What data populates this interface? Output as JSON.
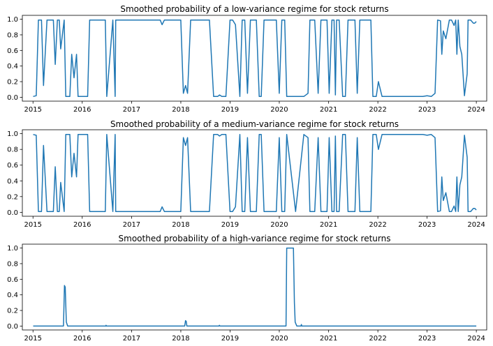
{
  "chart_data": [
    {
      "type": "line",
      "title": "Smoothed probability of a low-variance regime for stock returns",
      "xlabel": "",
      "ylabel": "",
      "xlim": [
        "2014-10-14",
        "2024-03-18"
      ],
      "ylim": [
        -0.05,
        1.05
      ],
      "x_ticks": [
        "2015",
        "2016",
        "2017",
        "2018",
        "2019",
        "2020",
        "2021",
        "2022",
        "2023",
        "2024"
      ],
      "y_ticks": [
        "0.0",
        "0.2",
        "0.4",
        "0.6",
        "0.8",
        "1.0"
      ],
      "grid": false,
      "color": "#1f77b4",
      "series": [
        {
          "x": [
            "2015-01-02",
            "2015-01-25",
            "2015-02-10",
            "2015-03-05",
            "2015-03-20",
            "2015-04-15",
            "2015-05-10",
            "2015-06-01",
            "2015-06-15",
            "2015-07-01",
            "2015-07-15",
            "2015-07-25",
            "2015-08-20",
            "2015-09-01",
            "2015-10-01",
            "2015-10-15",
            "2015-11-01",
            "2015-11-20",
            "2015-12-01",
            "2016-01-15",
            "2016-02-10",
            "2016-02-25",
            "2016-03-20",
            "2016-04-01",
            "2016-05-01",
            "2016-06-20",
            "2016-07-01",
            "2016-08-15",
            "2016-09-01",
            "2016-09-05",
            "2016-10-01",
            "2016-10-20",
            "2016-11-01",
            "2017-01-01",
            "2017-06-01",
            "2017-08-01",
            "2017-08-15",
            "2017-09-01",
            "2018-01-01",
            "2018-01-20",
            "2018-02-05",
            "2018-02-20",
            "2018-03-15",
            "2018-04-01",
            "2018-04-15",
            "2018-05-15",
            "2018-06-01",
            "2018-07-01",
            "2018-08-01",
            "2018-09-01",
            "2018-10-01",
            "2018-10-15",
            "2018-11-01",
            "2018-12-01",
            "2019-01-01",
            "2019-01-20",
            "2019-02-10",
            "2019-03-15",
            "2019-04-01",
            "2019-04-20",
            "2019-05-10",
            "2019-06-01",
            "2019-06-15",
            "2019-07-15",
            "2019-08-05",
            "2019-08-20",
            "2019-09-10",
            "2019-10-01",
            "2019-10-20",
            "2019-11-15",
            "2019-12-10",
            "2020-01-01",
            "2020-01-20",
            "2020-02-10",
            "2020-02-25",
            "2020-05-01",
            "2020-07-01",
            "2020-08-01",
            "2020-08-15",
            "2020-09-01",
            "2020-09-20",
            "2020-10-15",
            "2020-11-05",
            "2020-11-20",
            "2020-12-01",
            "2020-12-20",
            "2021-01-05",
            "2021-01-25",
            "2021-02-10",
            "2021-02-20",
            "2021-03-01",
            "2021-03-20",
            "2021-04-15",
            "2021-05-05",
            "2021-05-25",
            "2021-06-10",
            "2021-07-15",
            "2021-08-01",
            "2021-08-20",
            "2021-09-15",
            "2021-10-01",
            "2021-10-20",
            "2021-11-10",
            "2021-11-25",
            "2021-12-20",
            "2022-01-05",
            "2022-02-01",
            "2022-03-01",
            "2022-06-01",
            "2022-09-01",
            "2022-12-01",
            "2023-01-01",
            "2023-02-01",
            "2023-03-01",
            "2023-03-20",
            "2023-04-10",
            "2023-04-20",
            "2023-05-01",
            "2023-05-20",
            "2023-06-15",
            "2023-07-01",
            "2023-07-20",
            "2023-08-01",
            "2023-08-10",
            "2023-08-20",
            "2023-09-01",
            "2023-09-15",
            "2023-10-05",
            "2023-10-25",
            "2023-11-01",
            "2023-11-20",
            "2023-12-10",
            "2023-12-20",
            "2024-01-01"
          ],
          "values": [
            0.01,
            0.02,
            0.99,
            0.99,
            0.15,
            0.99,
            0.99,
            0.99,
            0.42,
            0.99,
            0.99,
            0.62,
            0.99,
            0.01,
            0.01,
            0.55,
            0.25,
            0.55,
            0.01,
            0.01,
            0.01,
            0.99,
            0.99,
            0.99,
            0.99,
            0.99,
            0.01,
            0.99,
            0.01,
            0.99,
            0.99,
            0.99,
            0.99,
            0.99,
            0.99,
            0.99,
            0.93,
            0.99,
            0.99,
            0.05,
            0.15,
            0.05,
            0.99,
            0.99,
            0.99,
            0.99,
            0.99,
            0.99,
            0.99,
            0.01,
            0.01,
            0.03,
            0.01,
            0.01,
            0.99,
            0.99,
            0.93,
            0.01,
            0.99,
            0.99,
            0.05,
            0.99,
            0.99,
            0.99,
            0.01,
            0.01,
            0.99,
            0.99,
            0.99,
            0.99,
            0.99,
            0.05,
            0.99,
            0.99,
            0.01,
            0.01,
            0.01,
            0.05,
            0.99,
            0.99,
            0.99,
            0.05,
            0.99,
            0.99,
            0.99,
            0.99,
            0.05,
            0.99,
            0.99,
            0.03,
            0.99,
            0.99,
            0.01,
            0.01,
            0.99,
            0.99,
            0.99,
            0.05,
            0.99,
            0.99,
            0.99,
            0.99,
            0.99,
            0.01,
            0.01,
            0.2,
            0.01,
            0.01,
            0.01,
            0.01,
            0.01,
            0.02,
            0.01,
            0.05,
            0.99,
            0.98,
            0.55,
            0.85,
            0.75,
            0.99,
            0.99,
            0.92,
            0.99,
            0.55,
            0.99,
            0.65,
            0.55,
            0.02,
            0.3,
            0.99,
            0.99,
            0.95,
            0.95,
            0.97
          ]
        }
      ]
    },
    {
      "type": "line",
      "title": "Smoothed probability of a medium-variance regime for stock returns",
      "xlabel": "",
      "ylabel": "",
      "xlim": [
        "2014-10-14",
        "2024-03-18"
      ],
      "ylim": [
        -0.05,
        1.05
      ],
      "x_ticks": [
        "2015",
        "2016",
        "2017",
        "2018",
        "2019",
        "2020",
        "2021",
        "2022",
        "2023",
        "2024"
      ],
      "y_ticks": [
        "0.0",
        "0.2",
        "0.4",
        "0.6",
        "0.8",
        "1.0"
      ],
      "grid": false,
      "color": "#1f77b4",
      "series": [
        {
          "x": [
            "2015-01-02",
            "2015-01-25",
            "2015-02-10",
            "2015-03-05",
            "2015-03-20",
            "2015-04-15",
            "2015-05-10",
            "2015-06-01",
            "2015-06-15",
            "2015-07-01",
            "2015-07-15",
            "2015-07-25",
            "2015-08-20",
            "2015-09-01",
            "2015-10-01",
            "2015-10-15",
            "2015-11-01",
            "2015-11-20",
            "2015-12-01",
            "2016-01-15",
            "2016-02-10",
            "2016-02-25",
            "2016-03-20",
            "2016-04-01",
            "2016-05-01",
            "2016-06-20",
            "2016-07-01",
            "2016-08-15",
            "2016-09-01",
            "2016-09-05",
            "2016-10-01",
            "2016-10-20",
            "2016-11-01",
            "2017-01-01",
            "2017-06-01",
            "2017-08-01",
            "2017-08-15",
            "2017-09-01",
            "2018-01-01",
            "2018-01-20",
            "2018-02-05",
            "2018-02-20",
            "2018-03-15",
            "2018-04-01",
            "2018-04-15",
            "2018-05-15",
            "2018-06-01",
            "2018-07-01",
            "2018-08-01",
            "2018-09-01",
            "2018-10-01",
            "2018-10-15",
            "2018-11-01",
            "2018-12-01",
            "2019-01-01",
            "2019-01-20",
            "2019-02-10",
            "2019-03-15",
            "2019-04-01",
            "2019-04-20",
            "2019-05-10",
            "2019-06-01",
            "2019-06-15",
            "2019-07-15",
            "2019-08-05",
            "2019-08-20",
            "2019-09-10",
            "2019-10-01",
            "2019-10-20",
            "2019-11-15",
            "2019-12-10",
            "2020-01-01",
            "2020-01-20",
            "2020-02-10",
            "2020-02-25",
            "2020-05-01",
            "2020-07-01",
            "2020-08-01",
            "2020-08-15",
            "2020-09-01",
            "2020-09-20",
            "2020-10-15",
            "2020-11-05",
            "2020-11-20",
            "2020-12-01",
            "2020-12-20",
            "2021-01-05",
            "2021-01-25",
            "2021-02-10",
            "2021-02-20",
            "2021-03-01",
            "2021-03-20",
            "2021-04-15",
            "2021-05-05",
            "2021-05-25",
            "2021-06-10",
            "2021-07-15",
            "2021-08-01",
            "2021-08-20",
            "2021-09-15",
            "2021-10-01",
            "2021-10-20",
            "2021-11-10",
            "2021-11-25",
            "2021-12-20",
            "2022-01-05",
            "2022-02-01",
            "2022-03-01",
            "2022-06-01",
            "2022-09-01",
            "2022-12-01",
            "2023-01-01",
            "2023-02-01",
            "2023-03-01",
            "2023-03-20",
            "2023-04-10",
            "2023-04-20",
            "2023-05-01",
            "2023-05-20",
            "2023-06-15",
            "2023-07-01",
            "2023-07-20",
            "2023-08-01",
            "2023-08-10",
            "2023-08-20",
            "2023-09-01",
            "2023-09-15",
            "2023-10-05",
            "2023-10-25",
            "2023-11-01",
            "2023-11-20",
            "2023-12-10",
            "2023-12-20",
            "2024-01-01"
          ],
          "values": [
            0.99,
            0.98,
            0.01,
            0.01,
            0.85,
            0.01,
            0.01,
            0.01,
            0.58,
            0.01,
            0.01,
            0.38,
            0.01,
            0.99,
            0.99,
            0.45,
            0.75,
            0.45,
            0.99,
            0.99,
            0.99,
            0.01,
            0.01,
            0.01,
            0.01,
            0.01,
            0.99,
            0.01,
            0.99,
            0.01,
            0.01,
            0.01,
            0.01,
            0.01,
            0.01,
            0.01,
            0.07,
            0.01,
            0.01,
            0.95,
            0.85,
            0.95,
            0.01,
            0.01,
            0.01,
            0.01,
            0.01,
            0.01,
            0.01,
            0.99,
            0.99,
            0.97,
            0.99,
            0.99,
            0.01,
            0.01,
            0.07,
            0.99,
            0.01,
            0.01,
            0.95,
            0.01,
            0.01,
            0.01,
            0.99,
            0.99,
            0.01,
            0.01,
            0.01,
            0.01,
            0.01,
            0.95,
            0.01,
            0.01,
            0.99,
            0.01,
            0.99,
            0.95,
            0.01,
            0.01,
            0.01,
            0.95,
            0.01,
            0.01,
            0.01,
            0.01,
            0.95,
            0.01,
            0.01,
            0.97,
            0.01,
            0.01,
            0.99,
            0.99,
            0.01,
            0.01,
            0.01,
            0.95,
            0.01,
            0.01,
            0.01,
            0.01,
            0.01,
            0.99,
            0.99,
            0.8,
            0.99,
            0.99,
            0.99,
            0.99,
            0.99,
            0.98,
            0.99,
            0.95,
            0.01,
            0.02,
            0.45,
            0.15,
            0.25,
            0.01,
            0.01,
            0.08,
            0.01,
            0.45,
            0.01,
            0.35,
            0.45,
            0.98,
            0.7,
            0.01,
            0.01,
            0.05,
            0.05,
            0.03
          ]
        }
      ]
    },
    {
      "type": "line",
      "title": "Smoothed probability of a high-variance regime for stock returns",
      "xlabel": "",
      "ylabel": "",
      "xlim": [
        "2014-10-14",
        "2024-03-18"
      ],
      "ylim": [
        -0.05,
        1.05
      ],
      "x_ticks": [
        "2015",
        "2016",
        "2017",
        "2018",
        "2019",
        "2020",
        "2021",
        "2022",
        "2023",
        "2024"
      ],
      "y_ticks": [
        "0.0",
        "0.2",
        "0.4",
        "0.6",
        "0.8",
        "1.0"
      ],
      "grid": false,
      "color": "#1f77b4",
      "series": [
        {
          "x": [
            "2015-01-02",
            "2015-08-15",
            "2015-08-22",
            "2015-08-28",
            "2015-09-05",
            "2015-09-15",
            "2016-06-24",
            "2016-06-26",
            "2016-06-28",
            "2018-01-30",
            "2018-02-05",
            "2018-02-10",
            "2018-02-15",
            "2018-10-10",
            "2018-10-14",
            "2018-10-18",
            "2020-02-20",
            "2020-02-25",
            "2020-04-15",
            "2020-04-22",
            "2020-04-28",
            "2020-05-10",
            "2020-06-10",
            "2020-06-13",
            "2020-06-16",
            "2024-01-01"
          ],
          "values": [
            0.0,
            0.0,
            0.52,
            0.5,
            0.05,
            0.0,
            0.0,
            0.01,
            0.0,
            0.0,
            0.07,
            0.06,
            0.0,
            0.0,
            0.01,
            0.0,
            0.0,
            1.0,
            1.0,
            0.3,
            0.05,
            0.0,
            0.0,
            0.02,
            0.0,
            0.0
          ]
        }
      ]
    }
  ]
}
